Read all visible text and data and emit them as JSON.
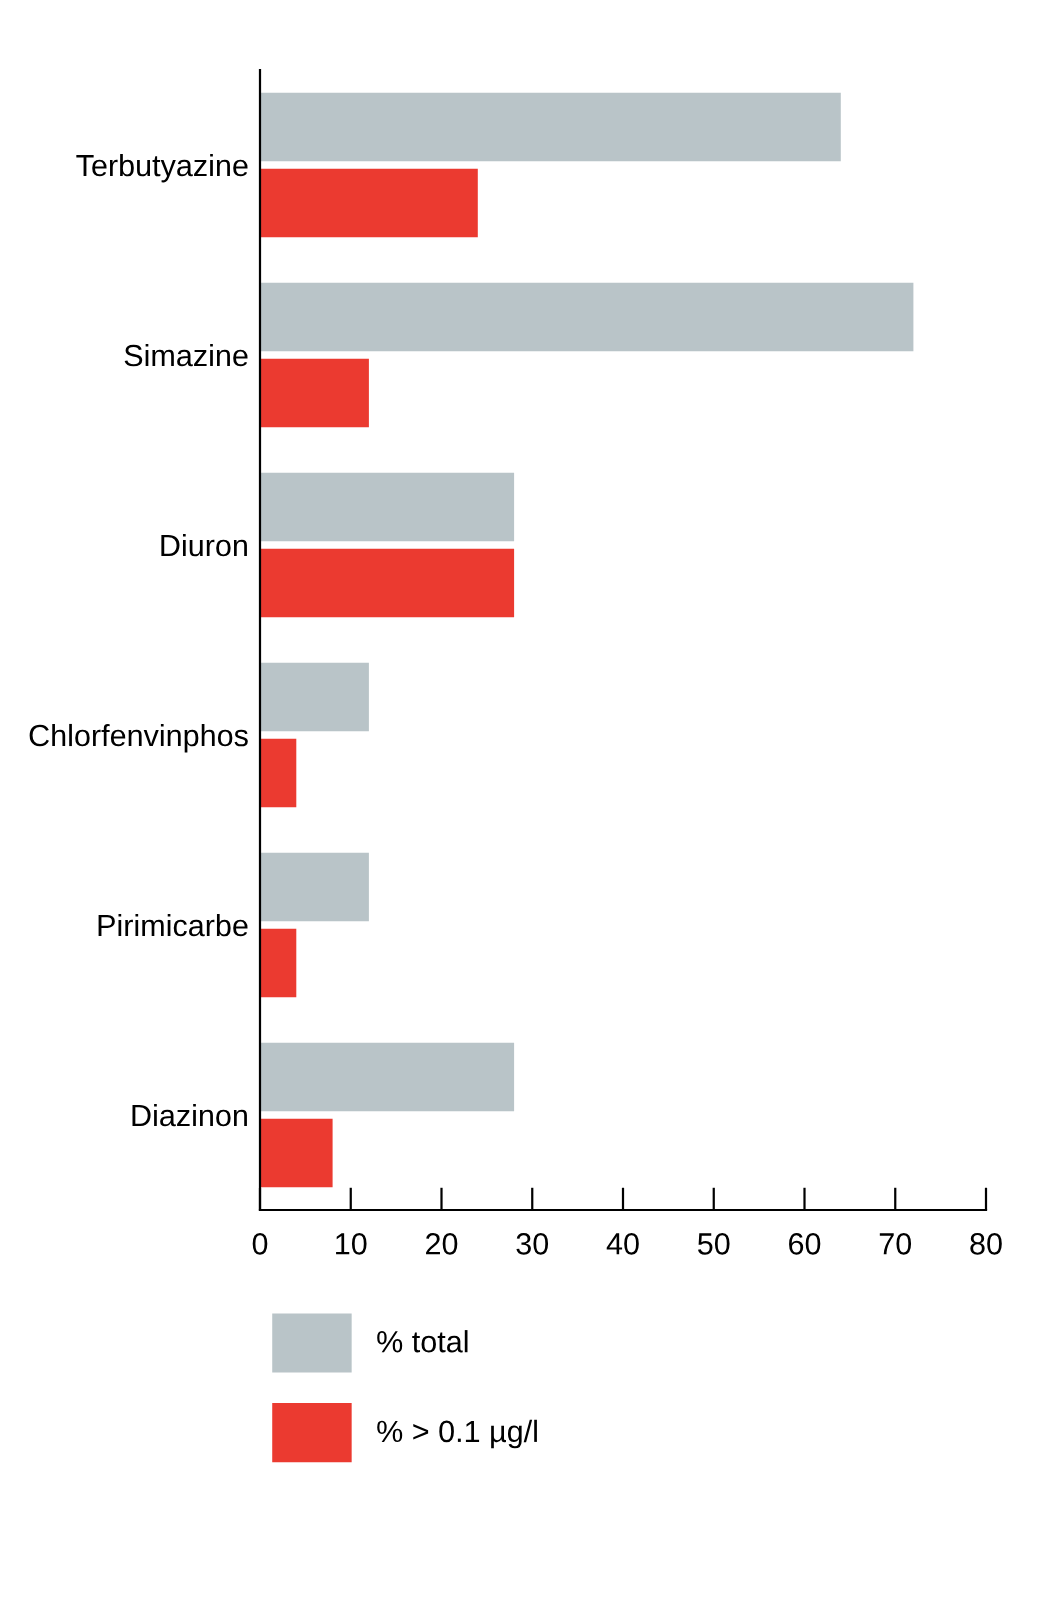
{
  "chart_data": {
    "type": "bar",
    "orientation": "horizontal",
    "categories": [
      "Terbutyazine",
      "Simazine",
      "Diuron",
      "Chlorfenvinphos",
      "Pirimicarbe",
      "Diazinon"
    ],
    "series": [
      {
        "name": "% total",
        "color": "#b9c4c8",
        "values": [
          64,
          72,
          28,
          12,
          12,
          28
        ]
      },
      {
        "name": "% > 0.1 µg/l",
        "color": "#eb3a30",
        "values": [
          24,
          12,
          28,
          4,
          4,
          8
        ]
      }
    ],
    "xlim": [
      0,
      80
    ],
    "xticks": [
      0,
      10,
      20,
      30,
      40,
      50,
      60,
      70,
      80
    ],
    "grid": false,
    "legend": "bottom"
  }
}
